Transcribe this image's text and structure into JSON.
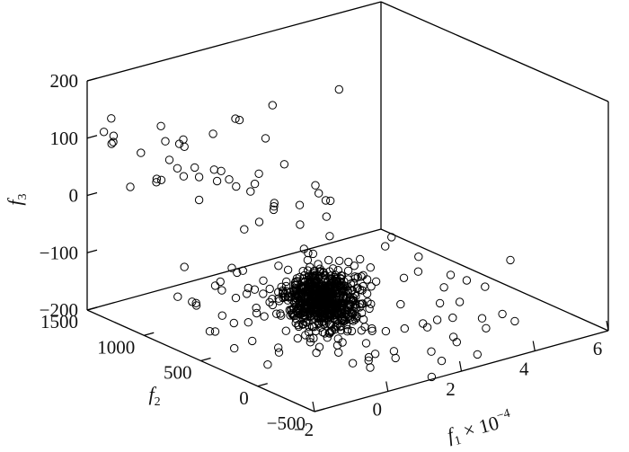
{
  "chart_data": {
    "type": "scatter",
    "projection": "3d",
    "marker": "open-circle",
    "title": "",
    "x_axis": {
      "label": "f",
      "label_sub": "1",
      "label_suffix": " × 10",
      "label_sup": "−4",
      "range": [
        -2,
        6
      ],
      "ticks": [
        -2,
        0,
        2,
        4,
        6
      ],
      "tick_labels": [
        "−2",
        "0",
        "2",
        "4",
        "6"
      ]
    },
    "y_axis": {
      "label": "f",
      "label_sub": "2",
      "range": [
        -500,
        1500
      ],
      "ticks": [
        -500,
        0,
        500,
        1000,
        1500
      ],
      "tick_labels": [
        "−500",
        "0",
        "500",
        "1000",
        "1500"
      ]
    },
    "z_axis": {
      "label": "f",
      "label_sub": "3",
      "range": [
        -200,
        200
      ],
      "ticks": [
        -200,
        -100,
        0,
        100,
        200
      ],
      "tick_labels": [
        "−200",
        "−100",
        "0",
        "100",
        "200"
      ]
    },
    "series": [
      {
        "points": [
          [
            0.0,
            200,
            -80
          ],
          [
            0.2,
            150,
            -90
          ],
          [
            0.1,
            100,
            -100
          ],
          [
            0.3,
            120,
            -95
          ],
          [
            -0.2,
            80,
            -110
          ],
          [
            0.4,
            200,
            -105
          ],
          [
            0.0,
            250,
            -85
          ],
          [
            0.25,
            50,
            -100
          ],
          [
            0.15,
            180,
            -70
          ],
          [
            0.35,
            160,
            -120
          ],
          [
            -0.1,
            220,
            -90
          ],
          [
            0.05,
            130,
            -130
          ],
          [
            0.45,
            90,
            -110
          ],
          [
            0.2,
            210,
            -60
          ],
          [
            -0.05,
            170,
            -115
          ],
          [
            0.3,
            60,
            -85
          ],
          [
            0.1,
            240,
            -100
          ],
          [
            0.5,
            140,
            -75
          ],
          [
            0.0,
            110,
            -125
          ],
          [
            0.15,
            260,
            -95
          ],
          [
            0.4,
            30,
            -105
          ],
          [
            0.25,
            190,
            -135
          ],
          [
            -0.15,
            140,
            -80
          ],
          [
            0.35,
            230,
            -115
          ],
          [
            0.05,
            70,
            -90
          ],
          [
            0.2,
            280,
            -110
          ],
          [
            0.45,
            170,
            -95
          ],
          [
            0.1,
            40,
            -120
          ],
          [
            0.3,
            250,
            -70
          ],
          [
            -0.1,
            100,
            -100
          ],
          [
            0.55,
            120,
            -110
          ],
          [
            0.0,
            300,
            -95
          ],
          [
            0.25,
            80,
            -140
          ],
          [
            0.15,
            200,
            -55
          ],
          [
            0.4,
            260,
            -100
          ],
          [
            0.6,
            200,
            -85
          ],
          [
            -0.2,
            180,
            -120
          ],
          [
            0.2,
            20,
            -90
          ],
          [
            0.35,
            110,
            -65
          ],
          [
            0.1,
            270,
            -125
          ],
          [
            0.3,
            180,
            -100
          ],
          [
            0.05,
            160,
            -105
          ],
          [
            0.25,
            140,
            -85
          ],
          [
            0.15,
            120,
            -115
          ],
          [
            0.45,
            220,
            -105
          ],
          [
            0.35,
            80,
            -95
          ],
          [
            0.0,
            180,
            -100
          ],
          [
            0.2,
            100,
            -75
          ],
          [
            0.4,
            150,
            -130
          ],
          [
            0.1,
            210,
            -110
          ],
          [
            0.3,
            300,
            -90
          ],
          [
            -0.05,
            60,
            -95
          ],
          [
            0.5,
            60,
            -100
          ],
          [
            0.15,
            310,
            -110
          ],
          [
            0.25,
            230,
            -80
          ],
          [
            0.05,
            250,
            -130
          ],
          [
            0.35,
            30,
            -115
          ],
          [
            0.6,
            100,
            -90
          ],
          [
            0.2,
            170,
            -145
          ],
          [
            0.0,
            50,
            -70
          ],
          [
            1.0,
            250,
            -100
          ],
          [
            1.2,
            300,
            -90
          ],
          [
            1.5,
            400,
            -110
          ],
          [
            0.8,
            350,
            -80
          ],
          [
            1.1,
            150,
            -130
          ],
          [
            1.6,
            200,
            -95
          ],
          [
            0.9,
            450,
            -60
          ],
          [
            1.3,
            100,
            -120
          ],
          [
            1.8,
            300,
            -100
          ],
          [
            0.7,
            220,
            -140
          ],
          [
            1.4,
            380,
            -75
          ],
          [
            1.0,
            50,
            -90
          ],
          [
            2.0,
            250,
            -110
          ],
          [
            0.85,
            320,
            -130
          ],
          [
            1.25,
            200,
            -65
          ],
          [
            -0.5,
            300,
            -100
          ],
          [
            -0.8,
            400,
            -120
          ],
          [
            -0.3,
            500,
            -90
          ],
          [
            -1.0,
            350,
            -80
          ],
          [
            -0.6,
            200,
            -60
          ],
          [
            -0.4,
            600,
            -110
          ],
          [
            -1.2,
            450,
            -100
          ],
          [
            -0.7,
            550,
            -70
          ],
          [
            -0.2,
            450,
            -130
          ],
          [
            -0.9,
            250,
            -95
          ],
          [
            -0.35,
            350,
            -50
          ],
          [
            -1.1,
            300,
            -115
          ],
          [
            -0.55,
            650,
            -85
          ],
          [
            -0.25,
            400,
            -140
          ],
          [
            -0.75,
            500,
            -105
          ],
          [
            -1.3,
            600,
            -90
          ],
          [
            -0.45,
            250,
            -75
          ],
          [
            -0.85,
            700,
            -100
          ],
          [
            -0.15,
            550,
            -120
          ],
          [
            -1.0,
            550,
            -60
          ],
          [
            0.3,
            600,
            20
          ],
          [
            0.0,
            500,
            40
          ],
          [
            0.6,
            700,
            0
          ],
          [
            -0.3,
            800,
            60
          ],
          [
            0.9,
            400,
            50
          ],
          [
            0.2,
            900,
            30
          ],
          [
            0.5,
            300,
            80
          ],
          [
            -0.2,
            700,
            -20
          ],
          [
            1.0,
            600,
            10
          ],
          [
            0.1,
            1000,
            50
          ],
          [
            0.7,
            500,
            -10
          ],
          [
            -0.4,
            900,
            70
          ],
          [
            0.4,
            800,
            40
          ],
          [
            0.8,
            300,
            20
          ],
          [
            -0.1,
            600,
            0
          ],
          [
            1.2,
            400,
            -30
          ],
          [
            0.3,
            1100,
            20
          ],
          [
            0.6,
            200,
            60
          ],
          [
            -0.5,
            1000,
            10
          ],
          [
            0.2,
            700,
            70
          ],
          [
            0.9,
            1000,
            0
          ],
          [
            0.0,
            1200,
            40
          ],
          [
            1.4,
            500,
            20
          ],
          [
            -0.3,
            1200,
            30
          ],
          [
            0.5,
            400,
            -40
          ],
          [
            1.0,
            200,
            -150
          ],
          [
            0.5,
            100,
            -170
          ],
          [
            1.5,
            300,
            -160
          ],
          [
            0.0,
            -100,
            -150
          ],
          [
            1.2,
            0,
            -200
          ],
          [
            0.3,
            200,
            -190
          ],
          [
            0.8,
            -50,
            -170
          ],
          [
            1.8,
            100,
            -180
          ],
          [
            -0.3,
            300,
            -160
          ],
          [
            0.6,
            -150,
            -200
          ],
          [
            1.1,
            300,
            -210
          ],
          [
            0.2,
            0,
            -180
          ],
          [
            1.4,
            -100,
            -190
          ],
          [
            0.9,
            100,
            -220
          ],
          [
            -0.1,
            150,
            -170
          ],
          [
            1.3,
            200,
            -140
          ],
          [
            0.4,
            -200,
            -180
          ],
          [
            2.0,
            0,
            -170
          ],
          [
            0.7,
            300,
            -180
          ],
          [
            1.6,
            -50,
            -210
          ],
          [
            2.0,
            -200,
            -150
          ],
          [
            2.5,
            0,
            -170
          ],
          [
            3.0,
            -100,
            -160
          ],
          [
            1.8,
            -300,
            -180
          ],
          [
            2.2,
            100,
            -140
          ],
          [
            2.8,
            -200,
            -190
          ],
          [
            3.5,
            0,
            -150
          ],
          [
            2.4,
            -300,
            -165
          ],
          [
            3.2,
            100,
            -185
          ],
          [
            1.6,
            200,
            -120
          ],
          [
            2.6,
            200,
            -110
          ],
          [
            3.8,
            -100,
            -175
          ],
          [
            4.0,
            100,
            -130
          ],
          [
            2.0,
            300,
            -90
          ],
          [
            3.0,
            200,
            -80
          ],
          [
            4.5,
            100,
            -150
          ],
          [
            3.6,
            -200,
            -180
          ],
          [
            2.9,
            -350,
            -200
          ],
          [
            5.5,
            200,
            -130
          ],
          [
            1.5,
            -400,
            -210
          ],
          [
            2.4,
            300,
            -60
          ],
          [
            4.2,
            -150,
            -170
          ],
          [
            3.3,
            300,
            -120
          ],
          [
            1.2,
            400,
            -200
          ],
          [
            2.7,
            -100,
            -230
          ],
          [
            -0.5,
            1000,
            50
          ],
          [
            -1.0,
            1100,
            80
          ],
          [
            -1.5,
            1050,
            60
          ],
          [
            -0.8,
            1200,
            100
          ],
          [
            -1.2,
            1150,
            40
          ],
          [
            -1.4,
            900,
            90
          ],
          [
            -0.6,
            1300,
            20
          ],
          [
            -1.0,
            1350,
            70
          ],
          [
            -1.6,
            1250,
            30
          ],
          [
            -0.9,
            1000,
            110
          ],
          [
            0.2,
            1400,
            60
          ],
          [
            0.5,
            1200,
            90
          ],
          [
            1.0,
            900,
            100
          ],
          [
            0.8,
            1100,
            120
          ],
          [
            0.0,
            1300,
            80
          ],
          [
            1.2,
            800,
            60
          ],
          [
            -0.3,
            1400,
            100
          ],
          [
            0.6,
            1000,
            130
          ],
          [
            1.5,
            1000,
            140
          ],
          [
            3.0,
            900,
            150
          ],
          [
            -1.8,
            1350,
            100
          ],
          [
            -1.7,
            1450,
            110
          ],
          [
            -1.9,
            1300,
            120
          ],
          [
            -1.6,
            1400,
            95
          ],
          [
            -1.5,
            1450,
            130
          ],
          [
            -0.8,
            700,
            -160
          ],
          [
            -1.2,
            800,
            -140
          ],
          [
            -0.4,
            600,
            -170
          ],
          [
            -1.5,
            700,
            -130
          ],
          [
            -1.0,
            900,
            -150
          ],
          [
            -0.6,
            500,
            -190
          ],
          [
            -1.3,
            600,
            -170
          ],
          [
            -0.2,
            400,
            -200
          ],
          [
            -1.1,
            500,
            -150
          ],
          [
            -1.7,
            800,
            -120
          ],
          [
            -0.8,
            300,
            -210
          ],
          [
            -1.4,
            400,
            -180
          ],
          [
            -0.5,
            800,
            -130
          ],
          [
            -1.6,
            550,
            -160
          ],
          [
            -0.9,
            1000,
            -100
          ],
          [
            4.0,
            300,
            -160
          ],
          [
            4.8,
            500,
            -170
          ],
          [
            4.2,
            400,
            -200
          ],
          [
            5.0,
            0,
            -210
          ],
          [
            3.5,
            600,
            -90
          ],
          [
            -0.2,
            -100,
            -120
          ],
          [
            0.5,
            -200,
            -130
          ],
          [
            -0.6,
            100,
            -150
          ],
          [
            0.2,
            -50,
            -120
          ],
          [
            -0.4,
            0,
            -170
          ],
          [
            0.8,
            -100,
            -140
          ],
          [
            0.1,
            -300,
            -160
          ],
          [
            -0.8,
            200,
            -180
          ],
          [
            1.4,
            600,
            -180
          ],
          [
            -1.2,
            200,
            -110
          ]
        ]
      }
    ]
  }
}
